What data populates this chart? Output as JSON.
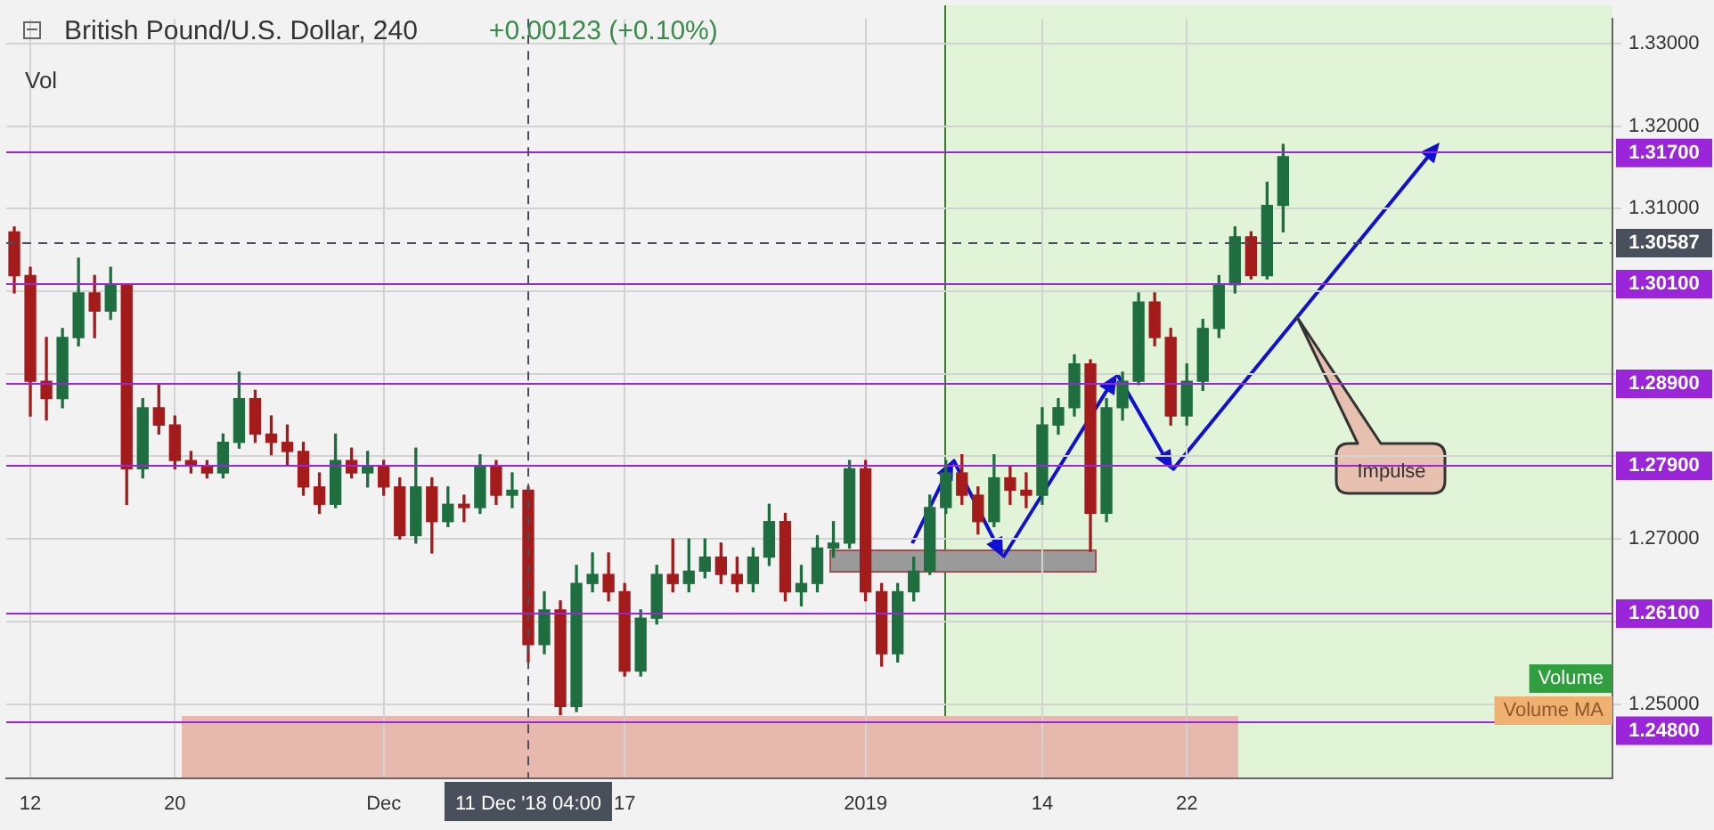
{
  "chart_data": {
    "type": "candlestick",
    "title": "British Pound/U.S. Dollar, 240",
    "subtitle": "+0.00123 (+0.10%)",
    "annotations": [
      "Vol",
      "Impulse",
      "Volume",
      "Volume MA"
    ],
    "categories": [
      null,
      "12",
      null,
      null,
      null,
      null,
      null,
      null,
      null,
      null,
      "20",
      null,
      null,
      null,
      null,
      null,
      null,
      null,
      null,
      null,
      null,
      null,
      null,
      "Dec",
      null,
      null,
      null,
      null,
      null,
      null,
      null,
      null,
      "11 Dec '18 04:00",
      null,
      null,
      null,
      null,
      null,
      "17",
      null,
      null,
      null,
      null,
      null,
      null,
      null,
      null,
      null,
      null,
      null,
      null,
      null,
      null,
      "2019",
      null,
      null,
      null,
      null,
      null,
      null,
      null,
      null,
      null,
      null,
      "14",
      null,
      null,
      null,
      null,
      null,
      null,
      null,
      null,
      "22",
      null,
      null,
      null,
      null,
      null,
      null,
      null,
      null,
      null,
      null,
      null,
      null,
      null,
      null,
      null,
      null,
      null,
      null,
      null,
      null,
      null,
      null,
      null,
      null,
      null,
      null
    ],
    "ohlc": [
      [
        1.3072,
        1.3078,
        1.2998,
        1.3019
      ],
      [
        1.3019,
        1.3029,
        1.2849,
        1.2891
      ],
      [
        1.2891,
        1.2944,
        1.2844,
        1.287
      ],
      [
        1.287,
        1.2955,
        1.2859,
        1.2944
      ],
      [
        1.2944,
        1.304,
        1.2934,
        1.2998
      ],
      [
        1.2998,
        1.3019,
        1.2944,
        1.2976
      ],
      [
        1.2976,
        1.3029,
        1.2966,
        1.3008
      ],
      [
        1.3008,
        1.3008,
        1.2742,
        1.2785
      ],
      [
        1.2785,
        1.287,
        1.2774,
        1.2859
      ],
      [
        1.2859,
        1.2887,
        1.2827,
        1.2838
      ],
      [
        1.2838,
        1.2849,
        1.2785,
        1.2795
      ],
      [
        1.2795,
        1.2806,
        1.278,
        1.2789
      ],
      [
        1.2789,
        1.2795,
        1.2774,
        1.278
      ],
      [
        1.278,
        1.2827,
        1.2774,
        1.2817
      ],
      [
        1.2817,
        1.2902,
        1.281,
        1.287
      ],
      [
        1.287,
        1.288,
        1.2817,
        1.2827
      ],
      [
        1.2827,
        1.2849,
        1.2802,
        1.2817
      ],
      [
        1.2817,
        1.2838,
        1.2789,
        1.2806
      ],
      [
        1.2806,
        1.2817,
        1.2753,
        1.2763
      ],
      [
        1.2763,
        1.278,
        1.2731,
        1.2742
      ],
      [
        1.2742,
        1.2827,
        1.2738,
        1.2795
      ],
      [
        1.2795,
        1.281,
        1.2774,
        1.278
      ],
      [
        1.278,
        1.2806,
        1.2763,
        1.2789
      ],
      [
        1.2789,
        1.2795,
        1.2753,
        1.2763
      ],
      [
        1.2763,
        1.2774,
        1.27,
        1.2704
      ],
      [
        1.2704,
        1.281,
        1.2695,
        1.2763
      ],
      [
        1.2763,
        1.2774,
        1.2683,
        1.2721
      ],
      [
        1.2721,
        1.2763,
        1.2715,
        1.2742
      ],
      [
        1.2742,
        1.2753,
        1.2721,
        1.2738
      ],
      [
        1.2738,
        1.2802,
        1.2731,
        1.2789
      ],
      [
        1.2789,
        1.2795,
        1.2742,
        1.2753
      ],
      [
        1.2753,
        1.278,
        1.2738,
        1.2759
      ],
      [
        1.2759,
        1.2763,
        1.2551,
        1.2572
      ],
      [
        1.2572,
        1.2636,
        1.2561,
        1.2614
      ],
      [
        1.2614,
        1.2625,
        1.2487,
        1.2497
      ],
      [
        1.2497,
        1.2668,
        1.2491,
        1.2646
      ],
      [
        1.2646,
        1.2683,
        1.2636,
        1.2657
      ],
      [
        1.2657,
        1.2683,
        1.2625,
        1.2636
      ],
      [
        1.2636,
        1.2646,
        1.2534,
        1.254
      ],
      [
        1.254,
        1.2614,
        1.2534,
        1.2604
      ],
      [
        1.2604,
        1.2668,
        1.2597,
        1.2657
      ],
      [
        1.2657,
        1.27,
        1.2636,
        1.2646
      ],
      [
        1.2646,
        1.27,
        1.2636,
        1.2661
      ],
      [
        1.2661,
        1.27,
        1.2653,
        1.2678
      ],
      [
        1.2678,
        1.2695,
        1.2646,
        1.2657
      ],
      [
        1.2657,
        1.2678,
        1.2636,
        1.2646
      ],
      [
        1.2646,
        1.2689,
        1.2636,
        1.2678
      ],
      [
        1.2678,
        1.2742,
        1.2668,
        1.2721
      ],
      [
        1.2721,
        1.2731,
        1.2625,
        1.2636
      ],
      [
        1.2636,
        1.2668,
        1.2619,
        1.2646
      ],
      [
        1.2646,
        1.2704,
        1.2636,
        1.2689
      ],
      [
        1.2689,
        1.2721,
        1.2678,
        1.2695
      ],
      [
        1.2695,
        1.2795,
        1.2689,
        1.2785
      ],
      [
        1.2785,
        1.2795,
        1.2625,
        1.2636
      ],
      [
        1.2636,
        1.2646,
        1.2546,
        1.2561
      ],
      [
        1.2561,
        1.2646,
        1.2551,
        1.2636
      ],
      [
        1.2636,
        1.2678,
        1.2625,
        1.2661
      ],
      [
        1.2661,
        1.2753,
        1.2657,
        1.2738
      ],
      [
        1.2738,
        1.2795,
        1.2731,
        1.278
      ],
      [
        1.278,
        1.2802,
        1.2742,
        1.2753
      ],
      [
        1.2753,
        1.2763,
        1.2706,
        1.2721
      ],
      [
        1.2721,
        1.2802,
        1.2715,
        1.2774
      ],
      [
        1.2774,
        1.2789,
        1.2742,
        1.2759
      ],
      [
        1.2759,
        1.278,
        1.2738,
        1.2753
      ],
      [
        1.2753,
        1.2859,
        1.2742,
        1.2838
      ],
      [
        1.2838,
        1.287,
        1.2827,
        1.2859
      ],
      [
        1.2859,
        1.2923,
        1.2849,
        1.2912
      ],
      [
        1.2912,
        1.2917,
        1.2685,
        1.2731
      ],
      [
        1.2731,
        1.287,
        1.2721,
        1.2859
      ],
      [
        1.2859,
        1.2902,
        1.2844,
        1.2891
      ],
      [
        1.2891,
        1.2998,
        1.2887,
        1.2987
      ],
      [
        1.2987,
        1.2998,
        1.2934,
        1.2944
      ],
      [
        1.2944,
        1.2955,
        1.2838,
        1.2849
      ],
      [
        1.2849,
        1.2912,
        1.2838,
        1.2891
      ],
      [
        1.2891,
        1.2966,
        1.288,
        1.2955
      ],
      [
        1.2955,
        1.3019,
        1.2944,
        1.3008
      ],
      [
        1.3008,
        1.3078,
        1.2998,
        1.3066
      ],
      [
        1.3066,
        1.3072,
        1.3015,
        1.3019
      ],
      [
        1.3019,
        1.3132,
        1.3015,
        1.3104
      ],
      [
        1.3104,
        1.3178,
        1.3072,
        1.3163
      ],
      null,
      null,
      null,
      null,
      null,
      null,
      null,
      null,
      null,
      null,
      null,
      null,
      null,
      null,
      null,
      null,
      null,
      null,
      null,
      null
    ],
    "colors": [
      "#a31b1b",
      "#a31b1b",
      "#a31b1b",
      "#1e6e40",
      "#1e6e40",
      "#a31b1b",
      "#1e6e40",
      "#a31b1b",
      "#1e6e40",
      "#a31b1b",
      "#a31b1b",
      "#a31b1b",
      "#a31b1b",
      "#1e6e40",
      "#1e6e40",
      "#a31b1b",
      "#a31b1b",
      "#a31b1b",
      "#a31b1b",
      "#a31b1b",
      "#1e6e40",
      "#a31b1b",
      "#1e6e40",
      "#a31b1b",
      "#a31b1b",
      "#1e6e40",
      "#a31b1b",
      "#1e6e40",
      "#a31b1b",
      "#1e6e40",
      "#a31b1b",
      "#1e6e40",
      "#a31b1b",
      "#1e6e40",
      "#a31b1b",
      "#1e6e40",
      "#1e6e40",
      "#a31b1b",
      "#a31b1b",
      "#1e6e40",
      "#1e6e40",
      "#a31b1b",
      "#1e6e40",
      "#1e6e40",
      "#a31b1b",
      "#a31b1b",
      "#1e6e40",
      "#1e6e40",
      "#a31b1b",
      "#1e6e40",
      "#1e6e40",
      "#1e6e40",
      "#1e6e40",
      "#a31b1b",
      "#a31b1b",
      "#1e6e40",
      "#1e6e40",
      "#1e6e40",
      "#1e6e40",
      "#a31b1b",
      "#a31b1b",
      "#1e6e40",
      "#a31b1b",
      "#a31b1b",
      "#1e6e40",
      "#1e6e40",
      "#1e6e40",
      "#a31b1b",
      "#1e6e40",
      "#1e6e40",
      "#1e6e40",
      "#a31b1b",
      "#a31b1b",
      "#1e6e40",
      "#1e6e40",
      "#1e6e40",
      "#1e6e40",
      "#a31b1b",
      "#1e6e40",
      "#1e6e40",
      null,
      null,
      null,
      null,
      null,
      null,
      null,
      null,
      null,
      null,
      null,
      null,
      null,
      null,
      null,
      null,
      null,
      null,
      null,
      null
    ],
    "ylim": [
      1.241,
      1.333
    ],
    "yticks": [
      {
        "value": 1.25,
        "label": "1.25000"
      },
      {
        "value": 1.26,
        "label": null
      },
      {
        "value": 1.27,
        "label": "1.27000"
      },
      {
        "value": 1.28,
        "label": null
      },
      {
        "value": 1.29,
        "label": null
      },
      {
        "value": 1.3,
        "label": null
      },
      {
        "value": 1.31,
        "label": "1.31000"
      },
      {
        "value": 1.32,
        "label": "1.32000"
      },
      {
        "value": 1.33,
        "label": "1.33000"
      }
    ],
    "ref_lines": [
      {
        "axis": "y",
        "value": 1.317,
        "label": "1.31700",
        "color": "#9b26d9"
      },
      {
        "axis": "y",
        "value": 1.30587,
        "label": "1.30587",
        "color": "#4a4f5c",
        "line_style": "dashed"
      },
      {
        "axis": "y",
        "value": 1.301,
        "label": "1.30100",
        "color": "#9b26d9"
      },
      {
        "axis": "y",
        "value": 1.289,
        "label": "1.28900",
        "color": "#9b26d9"
      },
      {
        "axis": "y",
        "value": 1.279,
        "label": "1.27900",
        "color": "#9b26d9"
      },
      {
        "axis": "y",
        "value": 1.261,
        "label": "1.26100",
        "color": "#9b26d9"
      },
      {
        "axis": "y",
        "value": 1.248,
        "label": "1.24800",
        "color": "#9b26d9"
      },
      {
        "axis": "x",
        "value": "11 Dec '18 04:00",
        "label": null,
        "color": "#4a4f5c",
        "line_style": "dashed"
      }
    ],
    "grid": true
  }
}
